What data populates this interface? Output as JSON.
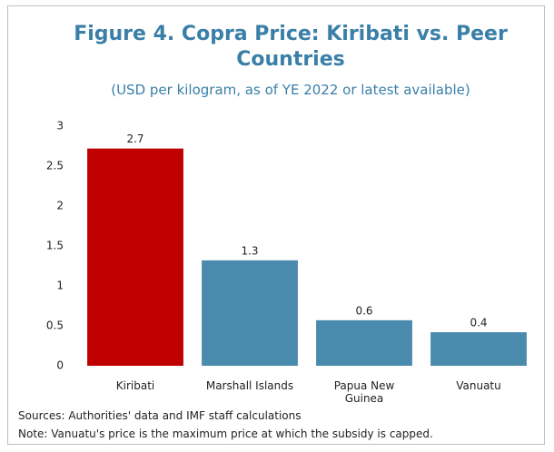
{
  "chart_data": {
    "type": "bar",
    "title": "Figure 4. Copra Price: Kiribati vs. Peer Countries",
    "subtitle": "(USD per kilogram, as of YE 2022 or latest available)",
    "categories": [
      "Kiribati",
      "Marshall Islands",
      "Papua New Guinea",
      "Vanuatu"
    ],
    "values": [
      2.72,
      1.32,
      0.57,
      0.42
    ],
    "value_labels": [
      "2.7",
      "1.3",
      "0.6",
      "0.4"
    ],
    "colors": [
      "#c00000",
      "#4a8bad",
      "#4a8bad",
      "#4a8bad"
    ],
    "ylim": [
      0,
      3
    ],
    "yticks": [
      0,
      0.5,
      1,
      1.5,
      2,
      2.5,
      3
    ],
    "grid": false,
    "sources": "Sources: Authorities' data and IMF staff calculations",
    "note": "Note: Vanuatu's price is the maximum price at which the subsidy is capped."
  }
}
